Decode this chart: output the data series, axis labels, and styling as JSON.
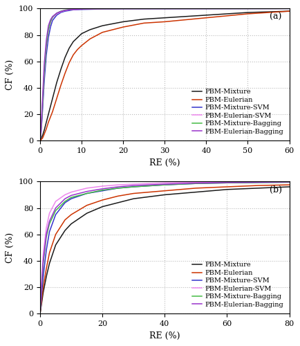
{
  "title_a": "(a)",
  "title_b": "(b)",
  "xlabel": "RE (%)",
  "ylabel": "CF (%)",
  "panel_a": {
    "xlim": [
      0,
      60
    ],
    "ylim": [
      0,
      100
    ],
    "xticks": [
      0,
      10,
      20,
      30,
      40,
      50,
      60
    ],
    "yticks": [
      0,
      20,
      40,
      60,
      80,
      100
    ],
    "series": [
      {
        "label": "PBM-Mixture",
        "color": "#1a1a1a",
        "x": [
          0,
          0.3,
          0.6,
          1,
          1.5,
          2,
          3,
          4,
          5,
          6,
          7,
          8,
          9,
          10,
          12,
          15,
          20,
          25,
          30,
          40,
          50,
          60
        ],
        "y": [
          0,
          2,
          4,
          8,
          14,
          20,
          32,
          44,
          54,
          63,
          70,
          75,
          78,
          81,
          84,
          87,
          90,
          92,
          93,
          95,
          97,
          98
        ]
      },
      {
        "label": "PBM-Eulerian",
        "color": "#cc3300",
        "x": [
          0,
          0.3,
          0.6,
          1,
          1.5,
          2,
          3,
          4,
          5,
          6,
          7,
          8,
          9,
          10,
          12,
          15,
          20,
          25,
          30,
          40,
          50,
          60
        ],
        "y": [
          0,
          1,
          2,
          5,
          9,
          14,
          22,
          32,
          42,
          51,
          59,
          65,
          69,
          72,
          77,
          82,
          86,
          89,
          90,
          93,
          96,
          98
        ]
      },
      {
        "label": "PBM-Mixture-SVM",
        "color": "#3333cc",
        "x": [
          0,
          0.2,
          0.5,
          1,
          1.5,
          2,
          2.5,
          3,
          4,
          5,
          6,
          7,
          8,
          10,
          15,
          20,
          60
        ],
        "y": [
          0,
          5,
          18,
          45,
          65,
          78,
          86,
          91,
          95,
          97,
          98,
          98.5,
          99,
          99.3,
          99.6,
          99.8,
          100
        ]
      },
      {
        "label": "PBM-Eulerian-SVM",
        "color": "#ee88ee",
        "x": [
          0,
          0.2,
          0.5,
          1,
          1.5,
          2,
          2.5,
          3,
          4,
          5,
          6,
          7,
          8,
          10,
          15,
          20,
          60
        ],
        "y": [
          0,
          6,
          22,
          52,
          71,
          83,
          89,
          93,
          96,
          97.5,
          98.5,
          99,
          99.2,
          99.5,
          99.7,
          99.8,
          100
        ]
      },
      {
        "label": "PBM-Mixture-Bagging",
        "color": "#44bb44",
        "x": [
          0,
          0.2,
          0.5,
          1,
          1.5,
          2,
          2.5,
          3,
          4,
          5,
          6,
          7,
          8,
          10,
          15,
          20,
          60
        ],
        "y": [
          0,
          6,
          22,
          52,
          72,
          84,
          90,
          93.5,
          96.5,
          98,
          98.8,
          99.2,
          99.5,
          99.7,
          99.8,
          99.9,
          100
        ]
      },
      {
        "label": "PBM-Eulerian-Bagging",
        "color": "#9933cc",
        "x": [
          0,
          0.2,
          0.5,
          1,
          1.5,
          2,
          2.5,
          3,
          4,
          5,
          6,
          7,
          8,
          10,
          15,
          20,
          60
        ],
        "y": [
          0,
          7,
          26,
          58,
          76,
          87,
          91.5,
          94,
          96.5,
          97.8,
          98.6,
          99.1,
          99.4,
          99.6,
          99.8,
          99.9,
          100
        ]
      }
    ]
  },
  "panel_b": {
    "xlim": [
      0,
      80
    ],
    "ylim": [
      0,
      100
    ],
    "xticks": [
      0,
      20,
      40,
      60,
      80
    ],
    "yticks": [
      0,
      20,
      40,
      60,
      80,
      100
    ],
    "series": [
      {
        "label": "PBM-Mixture",
        "color": "#1a1a1a",
        "x": [
          0,
          0.5,
          1,
          2,
          3,
          5,
          8,
          10,
          15,
          20,
          25,
          30,
          40,
          50,
          60,
          70,
          80
        ],
        "y": [
          0,
          8,
          16,
          28,
          38,
          52,
          63,
          68,
          76,
          81,
          84,
          87,
          90,
          92,
          94,
          95,
          96
        ]
      },
      {
        "label": "PBM-Eulerian",
        "color": "#cc3300",
        "x": [
          0,
          0.5,
          1,
          2,
          3,
          5,
          8,
          10,
          15,
          20,
          25,
          30,
          40,
          50,
          60,
          70,
          80
        ],
        "y": [
          0,
          10,
          20,
          34,
          46,
          60,
          71,
          75,
          82,
          86,
          89,
          91,
          93,
          95,
          96,
          97,
          97.5
        ]
      },
      {
        "label": "PBM-Mixture-SVM",
        "color": "#3333cc",
        "x": [
          0,
          0.5,
          1,
          2,
          3,
          5,
          8,
          10,
          15,
          20,
          25,
          30,
          40,
          50,
          60,
          70,
          80
        ],
        "y": [
          0,
          15,
          28,
          48,
          62,
          75,
          84,
          87,
          91,
          93,
          95,
          96,
          97.5,
          98.5,
          99,
          99.3,
          99.5
        ]
      },
      {
        "label": "PBM-Eulerian-SVM",
        "color": "#ee88ee",
        "x": [
          0,
          0.5,
          1,
          2,
          3,
          5,
          8,
          10,
          15,
          20,
          25,
          30,
          40,
          50,
          60,
          70,
          80
        ],
        "y": [
          0,
          25,
          45,
          65,
          76,
          85,
          90,
          92,
          95,
          96.5,
          97.5,
          98,
          99,
          99.5,
          99.7,
          99.8,
          99.9
        ]
      },
      {
        "label": "PBM-Mixture-Bagging",
        "color": "#44bb44",
        "x": [
          0,
          0.5,
          1,
          2,
          3,
          5,
          8,
          10,
          15,
          20,
          25,
          30,
          40,
          50,
          60,
          70,
          80
        ],
        "y": [
          0,
          20,
          38,
          58,
          68,
          78,
          85,
          88,
          91,
          93.5,
          95,
          96,
          97.5,
          98.5,
          99,
          99.3,
          99.5
        ]
      },
      {
        "label": "PBM-Eulerian-Bagging",
        "color": "#9933cc",
        "x": [
          0,
          0.5,
          1,
          2,
          3,
          5,
          8,
          10,
          15,
          20,
          25,
          30,
          40,
          50,
          60,
          70,
          80
        ],
        "y": [
          0,
          22,
          40,
          60,
          70,
          80,
          87,
          89.5,
          92.5,
          94.5,
          96,
          97,
          98,
          98.8,
          99.2,
          99.5,
          99.7
        ]
      }
    ]
  },
  "legend_labels": [
    "PBM-Mixture",
    "PBM-Eulerian",
    "PBM-Mixture-SVM",
    "PBM-Eulerian-SVM",
    "PBM-Mixture-Bagging",
    "PBM-Eulerian-Bagging"
  ],
  "legend_colors": [
    "#1a1a1a",
    "#cc3300",
    "#3333cc",
    "#ee88ee",
    "#44bb44",
    "#9933cc"
  ],
  "linewidth": 1.1,
  "grid_color": "#bbbbbb",
  "grid_style": ":",
  "background_color": "#ffffff",
  "font_size": 8,
  "label_font_size": 9
}
